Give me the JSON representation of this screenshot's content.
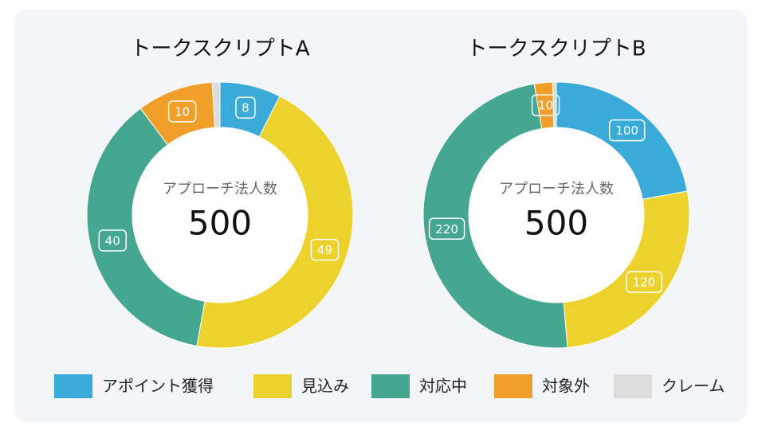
{
  "chart_data": [
    {
      "type": "pie",
      "title": "トークスクリプトA",
      "center_label": "アプローチ法人数",
      "center_value": 500,
      "values": [
        8,
        49,
        40,
        10,
        1
      ]
    },
    {
      "type": "pie",
      "title": "トークスクリプトB",
      "center_label": "アプローチ法人数",
      "center_value": 500,
      "values": [
        100,
        120,
        220,
        10,
        2
      ]
    }
  ],
  "legend": {
    "categories": [
      "アポイント獲得",
      "見込み",
      "対応中",
      "対象外",
      "クレーム"
    ],
    "colors": [
      "#3aabd9",
      "#edd22e",
      "#45a78f",
      "#ef9f2a",
      "#dcdcdc"
    ]
  }
}
